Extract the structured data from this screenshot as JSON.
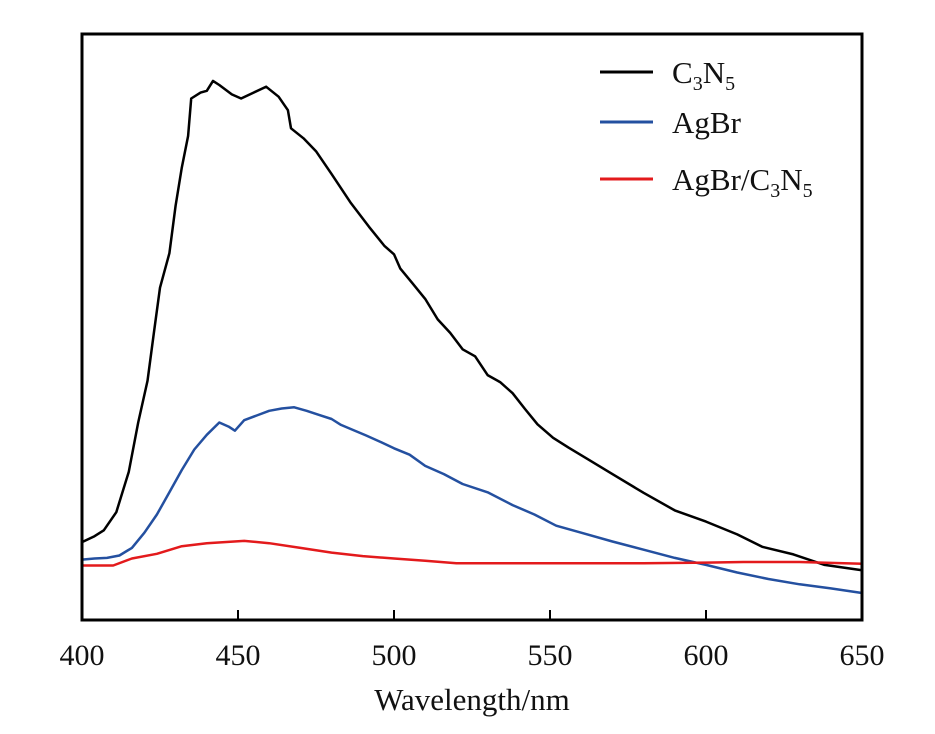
{
  "chart_data": {
    "type": "line",
    "title": "",
    "xlabel": "Wavelength/nm",
    "ylabel": "",
    "xlim": [
      400,
      650
    ],
    "ylim": [
      0,
      1
    ],
    "x_ticks": [
      "400",
      "450",
      "500",
      "550",
      "600",
      "650"
    ],
    "grid": false,
    "legend_position": "top-right",
    "series": [
      {
        "name": "C3N5",
        "legend_parts": [
          [
            "C",
            ""
          ],
          [
            "3",
            "sub"
          ],
          [
            "N",
            ""
          ],
          [
            "5",
            "sub"
          ]
        ],
        "color": "#000000",
        "points": [
          [
            400,
            0.133
          ],
          [
            404,
            0.143
          ],
          [
            407,
            0.153
          ],
          [
            411,
            0.184
          ],
          [
            415,
            0.253
          ],
          [
            418,
            0.337
          ],
          [
            421,
            0.408
          ],
          [
            423,
            0.489
          ],
          [
            425,
            0.567
          ],
          [
            428,
            0.626
          ],
          [
            430,
            0.707
          ],
          [
            432,
            0.772
          ],
          [
            434,
            0.826
          ],
          [
            435,
            0.89
          ],
          [
            438,
            0.9
          ],
          [
            440,
            0.903
          ],
          [
            442,
            0.92
          ],
          [
            444,
            0.913
          ],
          [
            448,
            0.897
          ],
          [
            451,
            0.89
          ],
          [
            455,
            0.9
          ],
          [
            459,
            0.91
          ],
          [
            463,
            0.893
          ],
          [
            466,
            0.87
          ],
          [
            467,
            0.839
          ],
          [
            471,
            0.822
          ],
          [
            475,
            0.8
          ],
          [
            480,
            0.761
          ],
          [
            486,
            0.713
          ],
          [
            492,
            0.671
          ],
          [
            497,
            0.638
          ],
          [
            500,
            0.624
          ],
          [
            502,
            0.6
          ],
          [
            506,
            0.574
          ],
          [
            510,
            0.548
          ],
          [
            514,
            0.513
          ],
          [
            518,
            0.49
          ],
          [
            522,
            0.462
          ],
          [
            526,
            0.45
          ],
          [
            530,
            0.418
          ],
          [
            534,
            0.406
          ],
          [
            538,
            0.387
          ],
          [
            542,
            0.36
          ],
          [
            546,
            0.334
          ],
          [
            551,
            0.311
          ],
          [
            556,
            0.294
          ],
          [
            562,
            0.275
          ],
          [
            570,
            0.249
          ],
          [
            580,
            0.217
          ],
          [
            590,
            0.187
          ],
          [
            600,
            0.168
          ],
          [
            610,
            0.146
          ],
          [
            618,
            0.125
          ],
          [
            628,
            0.112
          ],
          [
            638,
            0.094
          ],
          [
            650,
            0.085
          ]
        ]
      },
      {
        "name": "AgBr",
        "legend_parts": [
          [
            "AgBr",
            ""
          ]
        ],
        "color": "#2450A0",
        "points": [
          [
            400,
            0.103
          ],
          [
            404,
            0.105
          ],
          [
            408,
            0.106
          ],
          [
            412,
            0.11
          ],
          [
            416,
            0.123
          ],
          [
            420,
            0.149
          ],
          [
            424,
            0.18
          ],
          [
            428,
            0.218
          ],
          [
            432,
            0.256
          ],
          [
            436,
            0.291
          ],
          [
            440,
            0.316
          ],
          [
            444,
            0.337
          ],
          [
            447,
            0.33
          ],
          [
            449,
            0.323
          ],
          [
            452,
            0.341
          ],
          [
            456,
            0.349
          ],
          [
            460,
            0.357
          ],
          [
            464,
            0.361
          ],
          [
            468,
            0.363
          ],
          [
            472,
            0.357
          ],
          [
            476,
            0.35
          ],
          [
            480,
            0.343
          ],
          [
            483,
            0.333
          ],
          [
            487,
            0.324
          ],
          [
            491,
            0.315
          ],
          [
            496,
            0.303
          ],
          [
            500,
            0.293
          ],
          [
            505,
            0.282
          ],
          [
            510,
            0.263
          ],
          [
            516,
            0.249
          ],
          [
            522,
            0.232
          ],
          [
            530,
            0.218
          ],
          [
            538,
            0.196
          ],
          [
            545,
            0.18
          ],
          [
            552,
            0.161
          ],
          [
            560,
            0.149
          ],
          [
            570,
            0.134
          ],
          [
            580,
            0.12
          ],
          [
            590,
            0.106
          ],
          [
            600,
            0.094
          ],
          [
            610,
            0.081
          ],
          [
            620,
            0.07
          ],
          [
            630,
            0.061
          ],
          [
            640,
            0.054
          ],
          [
            650,
            0.046
          ]
        ]
      },
      {
        "name": "AgBr/C3N5",
        "legend_parts": [
          [
            "AgBr/C",
            ""
          ],
          [
            "3",
            "sub"
          ],
          [
            "N",
            ""
          ],
          [
            "5",
            "sub"
          ]
        ],
        "color": "#E31A1C",
        "points": [
          [
            400,
            0.093
          ],
          [
            410,
            0.093
          ],
          [
            416,
            0.105
          ],
          [
            424,
            0.113
          ],
          [
            432,
            0.126
          ],
          [
            440,
            0.131
          ],
          [
            452,
            0.135
          ],
          [
            460,
            0.131
          ],
          [
            470,
            0.123
          ],
          [
            480,
            0.115
          ],
          [
            490,
            0.109
          ],
          [
            500,
            0.105
          ],
          [
            510,
            0.101
          ],
          [
            520,
            0.097
          ],
          [
            540,
            0.097
          ],
          [
            560,
            0.097
          ],
          [
            580,
            0.097
          ],
          [
            600,
            0.098
          ],
          [
            612,
            0.099
          ],
          [
            630,
            0.099
          ],
          [
            650,
            0.096
          ]
        ]
      }
    ]
  }
}
